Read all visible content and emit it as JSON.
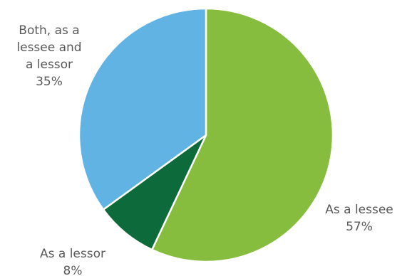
{
  "chart_data": {
    "type": "pie",
    "title": "",
    "slices": [
      {
        "label_lines": [
          "As a lessee"
        ],
        "percent_label": "57%",
        "value": 57,
        "color": "#86bd3f"
      },
      {
        "label_lines": [
          "As a lessor"
        ],
        "percent_label": "8%",
        "value": 8,
        "color": "#0d6a3a"
      },
      {
        "label_lines": [
          "Both, as a",
          "lessee and",
          "a lessor"
        ],
        "percent_label": "35%",
        "value": 35,
        "color": "#61b3e4"
      }
    ],
    "start_angle": "12 o'clock",
    "direction": "clockwise",
    "legend": "none"
  }
}
